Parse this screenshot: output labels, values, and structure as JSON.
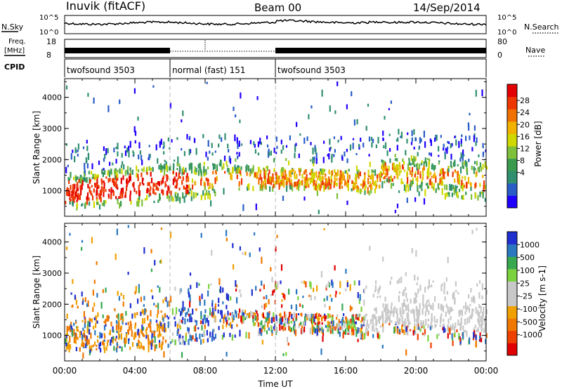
{
  "header": {
    "station": "Inuvik (fitACF)",
    "beam": "Beam 00",
    "date": "14/Sep/2014"
  },
  "top_panel": {
    "left_label": "N.Sky",
    "right_label": "N.Search",
    "left_ticks": [
      "10^5",
      "10^0"
    ],
    "right_ticks": [
      "10^5",
      "10^0"
    ]
  },
  "freq_panel": {
    "left_label_1": "Freq.",
    "left_label_2": "[MHz]",
    "right_label": "Nave",
    "left_ticks": [
      "18",
      "8"
    ],
    "right_ticks": [
      "80",
      "0"
    ]
  },
  "cpid": {
    "label": "CPID",
    "segments": [
      {
        "name": "twofsound 3503",
        "start_hour": 0,
        "end_hour": 6
      },
      {
        "name": "normal (fast) 151",
        "start_hour": 6,
        "end_hour": 12
      },
      {
        "name": "twofsound 3503",
        "start_hour": 12,
        "end_hour": 24
      }
    ]
  },
  "chart_data": [
    {
      "type": "heatmap",
      "panel": "power",
      "ylabel": "Slant Range [km]",
      "ylim": [
        180,
        4600
      ],
      "yticks": [
        "1000",
        "2000",
        "3000",
        "4000"
      ],
      "xlim": [
        0,
        24
      ],
      "colorbar": {
        "label": "Power [dB]",
        "ticks": [
          "28",
          "24",
          "20",
          "16",
          "12",
          "8",
          "4"
        ],
        "colors": [
          "#1f00ff",
          "#2a5cc8",
          "#2f8f6f",
          "#3a9b4e",
          "#7fc03a",
          "#cfd800",
          "#f2b200",
          "#f07000",
          "#ee3600",
          "#e40000"
        ]
      }
    },
    {
      "type": "heatmap",
      "panel": "velocity",
      "ylabel": "Slant Range [km]",
      "ylim": [
        180,
        4600
      ],
      "yticks": [
        "1000",
        "2000",
        "3000",
        "4000"
      ],
      "xlim": [
        0,
        24
      ],
      "xticks": [
        "00:00",
        "04:00",
        "08:00",
        "12:00",
        "16:00",
        "20:00",
        "00:00"
      ],
      "xlabel": "Time UT",
      "colorbar": {
        "label": "Velocity [m s-1]",
        "ticks": [
          "1000",
          "500",
          "100",
          "25",
          "-25",
          "-100",
          "-500",
          "-1000"
        ],
        "colors": [
          "#1f2fd0",
          "#2a78c0",
          "#36a850",
          "#7ad23c",
          "#c8c8c8",
          "#c8c8c8",
          "#f0a000",
          "#f07800",
          "#ee4000",
          "#e00000"
        ]
      }
    }
  ]
}
